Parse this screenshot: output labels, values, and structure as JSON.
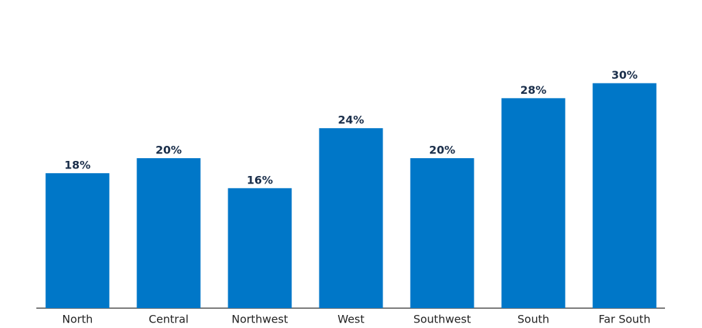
{
  "chart_data": {
    "type": "bar",
    "categories": [
      "North",
      "Central",
      "Northwest",
      "West",
      "Southwest",
      "South",
      "Far South"
    ],
    "values": [
      18,
      20,
      16,
      24,
      20,
      28,
      30
    ],
    "value_labels": [
      "18%",
      "20%",
      "16%",
      "24%",
      "20%",
      "28%",
      "30%"
    ],
    "color": "#0077c8"
  }
}
